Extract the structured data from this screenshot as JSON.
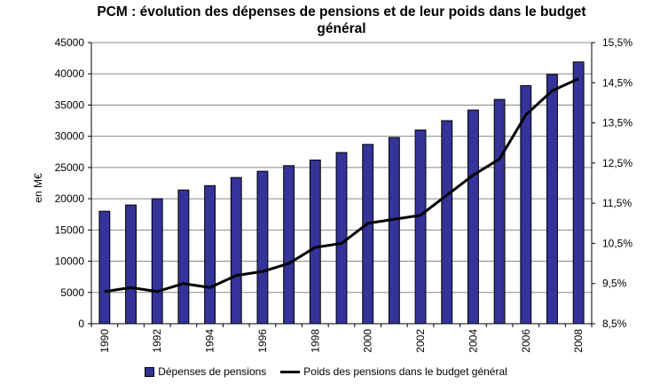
{
  "chart_data": {
    "type": "bar+line",
    "title_line1": "PCM : évolution des dépenses de pensions et de leur poids dans le budget",
    "title_line2": "général",
    "ylabel": "en M€",
    "ylim": [
      0,
      45000
    ],
    "y_ticks": [
      "0",
      "5000",
      "10000",
      "15000",
      "20000",
      "25000",
      "30000",
      "35000",
      "40000",
      "45000"
    ],
    "y2lim": [
      8.5,
      15.5
    ],
    "y2_ticks": [
      "8,5%",
      "9,5%",
      "10,5%",
      "11,5%",
      "12,5%",
      "13,5%",
      "14,5%",
      "15,5%"
    ],
    "x": [
      1990,
      1991,
      1992,
      1993,
      1994,
      1995,
      1996,
      1997,
      1998,
      1999,
      2000,
      2001,
      2002,
      2003,
      2004,
      2005,
      2006,
      2007,
      2008
    ],
    "x_tick_labels": [
      "1990",
      "1992",
      "1994",
      "1996",
      "1998",
      "2000",
      "2002",
      "2004",
      "2006",
      "2008"
    ],
    "series": [
      {
        "name": "Dépenses de pensions",
        "kind": "bar",
        "color": "#333399",
        "values": [
          18000,
          19000,
          20000,
          21400,
          22100,
          23400,
          24400,
          25300,
          26200,
          27400,
          28700,
          29800,
          31000,
          32500,
          34200,
          35900,
          38100,
          39900,
          41900
        ]
      },
      {
        "name": "Poids des pensions dans le budget général",
        "kind": "line",
        "axis": "right",
        "color": "#000000",
        "values": [
          9.3,
          9.4,
          9.3,
          9.5,
          9.4,
          9.7,
          9.8,
          10.0,
          10.4,
          10.5,
          11.0,
          11.1,
          11.2,
          11.7,
          12.2,
          12.6,
          13.7,
          14.3,
          14.6
        ]
      }
    ],
    "grid": "horizontal",
    "legend_position": "bottom"
  }
}
